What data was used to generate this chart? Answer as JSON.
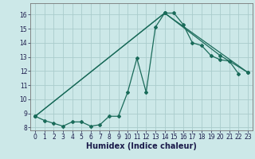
{
  "xlabel": "Humidex (Indice chaleur)",
  "bg_color": "#cce8e8",
  "grid_color": "#aacccc",
  "line_color": "#1a6b5a",
  "xlim": [
    -0.5,
    23.5
  ],
  "ylim": [
    7.8,
    16.8
  ],
  "xticks": [
    0,
    1,
    2,
    3,
    4,
    5,
    6,
    7,
    8,
    9,
    10,
    11,
    12,
    13,
    14,
    15,
    16,
    17,
    18,
    19,
    20,
    21,
    22,
    23
  ],
  "yticks": [
    8,
    9,
    10,
    11,
    12,
    13,
    14,
    15,
    16
  ],
  "line1_x": [
    0,
    1,
    2,
    3,
    4,
    5,
    6,
    7,
    8,
    9,
    10,
    11,
    12,
    13,
    14,
    15,
    16,
    17,
    18,
    19,
    20,
    21,
    22
  ],
  "line1_y": [
    8.8,
    8.5,
    8.3,
    8.1,
    8.4,
    8.4,
    8.1,
    8.2,
    8.8,
    8.8,
    10.5,
    12.9,
    10.5,
    15.1,
    16.1,
    16.1,
    15.3,
    14.0,
    13.8,
    13.1,
    12.8,
    12.7,
    11.8
  ],
  "line2_x": [
    0,
    14,
    20,
    23
  ],
  "line2_y": [
    8.8,
    16.1,
    13.1,
    11.9
  ],
  "line3_x": [
    0,
    14,
    23
  ],
  "line3_y": [
    8.8,
    16.1,
    11.9
  ],
  "xlabel_fontsize": 7,
  "tick_fontsize": 5.5
}
